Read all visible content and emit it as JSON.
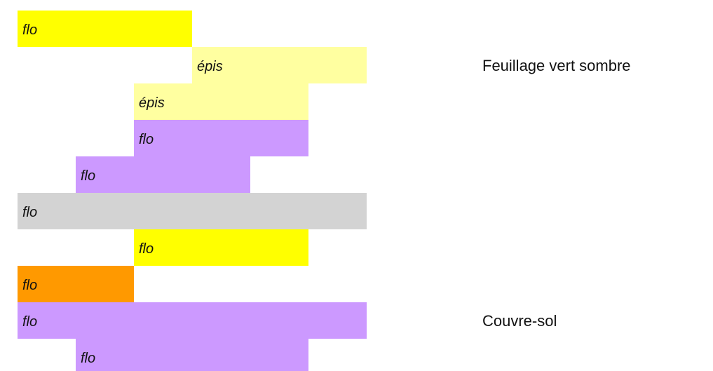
{
  "chart_data": {
    "type": "bar",
    "orientation": "horizontal-range",
    "grid": false,
    "x_domain": [
      0,
      12
    ],
    "bars": [
      {
        "label": "flo",
        "start": 0,
        "end": 6,
        "color": "#ffff00"
      },
      {
        "label": "épis",
        "start": 6,
        "end": 12,
        "color": "#ffffa0"
      },
      {
        "label": "épis",
        "start": 4,
        "end": 10,
        "color": "#ffffa0"
      },
      {
        "label": "flo",
        "start": 4,
        "end": 10,
        "color": "#cc99ff"
      },
      {
        "label": "flo",
        "start": 2,
        "end": 8,
        "color": "#cc99ff"
      },
      {
        "label": "flo",
        "start": 0,
        "end": 12,
        "color": "#d3d3d3"
      },
      {
        "label": "flo",
        "start": 4,
        "end": 10,
        "color": "#ffff00"
      },
      {
        "label": "flo",
        "start": 0,
        "end": 4,
        "color": "#ff9900"
      },
      {
        "label": "flo",
        "start": 0,
        "end": 12,
        "color": "#cc99ff"
      },
      {
        "label": "flo",
        "start": 2,
        "end": 10,
        "color": "#cc99ff"
      }
    ],
    "annotations": [
      {
        "text": "Feuillage vert sombre",
        "row": 1
      },
      {
        "text": "Couvre-sol",
        "row": 8
      }
    ]
  }
}
